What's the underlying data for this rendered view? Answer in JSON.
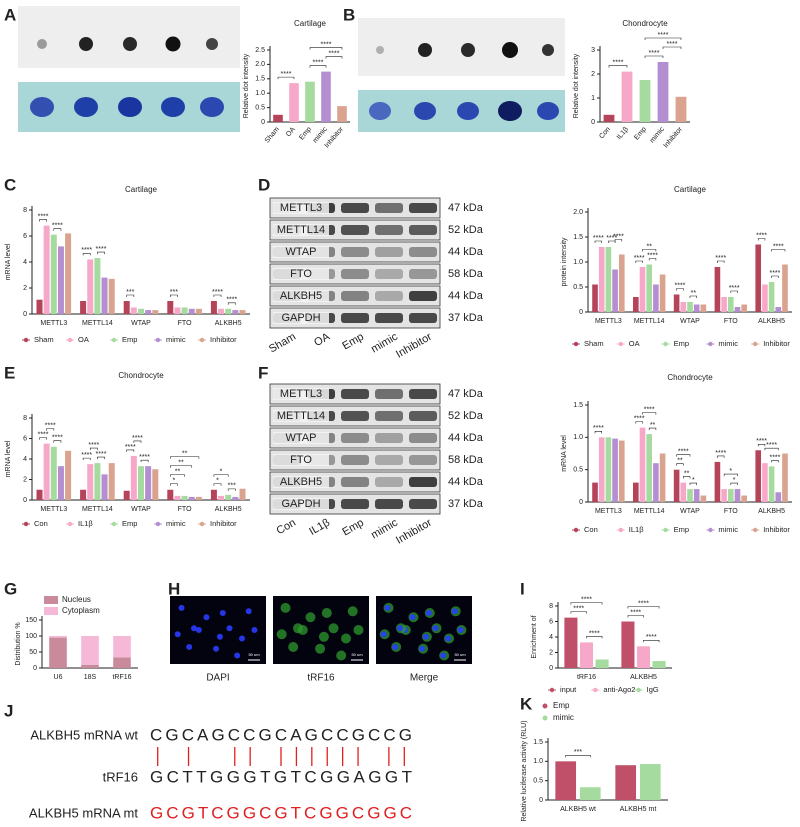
{
  "panels": [
    "A",
    "B",
    "C",
    "D",
    "E",
    "F",
    "G",
    "H",
    "I",
    "J",
    "K"
  ],
  "chart_data": [
    {
      "type": "bar",
      "title": "Cartilage",
      "y_label": "Relative dot intensity",
      "categories": [
        "Sham",
        "OA",
        "Emp",
        "mimic",
        "Inhibitor"
      ],
      "values": [
        0.25,
        1.35,
        1.4,
        1.75,
        0.55
      ],
      "colors": [
        "#b5435a",
        "#f7a8c8",
        "#a6dba0",
        "#b48ed0",
        "#d9a38f"
      ],
      "ylim": [
        0,
        2.5
      ],
      "yticks": [
        0,
        0.5,
        {
          "value": 1,
          "label": "1.0"
        },
        1.5,
        {
          "value": 2,
          "label": "2.0"
        },
        2.5
      ],
      "annotations": [
        "****",
        "****",
        "****",
        "****"
      ]
    },
    {
      "type": "bar",
      "title": "Chondrocyte",
      "y_label": "Relative dot intensity",
      "categories": [
        "Con",
        "IL1β",
        "Emp",
        "mimic",
        "Inhibitor"
      ],
      "values": [
        0.3,
        2.1,
        1.75,
        2.5,
        1.05
      ],
      "colors": [
        "#b5435a",
        "#f7a8c8",
        "#a6dba0",
        "#b48ed0",
        "#d9a38f"
      ],
      "ylim": [
        0,
        3
      ],
      "yticks": [
        0,
        1,
        2,
        3
      ],
      "annotations": [
        "****",
        "****",
        "****",
        "****"
      ]
    },
    {
      "type": "bar",
      "title": "Cartilage",
      "y_label": "mRNA level",
      "categories": [
        "METTL3",
        "METTL14",
        "WTAP",
        "FTO",
        "ALKBH5"
      ],
      "series": [
        {
          "name": "Sham",
          "color": "#b5435a",
          "values": [
            1.1,
            1.0,
            1.0,
            1.0,
            1.0
          ]
        },
        {
          "name": "OA",
          "color": "#f7a8c8",
          "values": [
            6.8,
            4.2,
            0.5,
            0.5,
            0.4
          ]
        },
        {
          "name": "Emp",
          "color": "#a6dba0",
          "values": [
            6.1,
            4.3,
            0.4,
            0.5,
            0.4
          ]
        },
        {
          "name": "mimic",
          "color": "#b48ed0",
          "values": [
            5.2,
            2.8,
            0.3,
            0.4,
            0.3
          ]
        },
        {
          "name": "Inhibitor",
          "color": "#d9a38f",
          "values": [
            6.2,
            2.7,
            0.3,
            0.4,
            0.3
          ]
        }
      ],
      "ylim": [
        0,
        8
      ],
      "yticks": [
        0,
        2,
        4,
        6,
        8
      ],
      "annotations": [
        "****",
        "****",
        "****",
        "****",
        "***",
        "***",
        "****",
        "****"
      ]
    },
    {
      "type": "bar",
      "title": "Cartilage",
      "y_label": "protein intensity",
      "categories": [
        "METTL3",
        "METTL14",
        "WTAP",
        "FTO",
        "ALKBH5"
      ],
      "series": [
        {
          "name": "Sham",
          "color": "#b5435a",
          "values": [
            0.55,
            0.3,
            0.35,
            0.9,
            1.35
          ]
        },
        {
          "name": "OA",
          "color": "#f7a8c8",
          "values": [
            1.3,
            0.9,
            0.2,
            0.3,
            0.55
          ]
        },
        {
          "name": "Emp",
          "color": "#a6dba0",
          "values": [
            1.3,
            0.95,
            0.2,
            0.3,
            0.6
          ]
        },
        {
          "name": "mimic",
          "color": "#b48ed0",
          "values": [
            0.85,
            0.55,
            0.15,
            0.1,
            0.1
          ]
        },
        {
          "name": "Inhibitor",
          "color": "#d9a38f",
          "values": [
            1.15,
            0.75,
            0.15,
            0.15,
            0.95
          ]
        }
      ],
      "ylim": [
        0,
        2
      ],
      "yticks": [
        0,
        0.5,
        {
          "value": 1,
          "label": "1.0"
        },
        1.5,
        {
          "value": 2,
          "label": "2.0"
        }
      ],
      "annotations": [
        "****",
        "****",
        "****",
        "****",
        "****",
        "**",
        "****",
        "**",
        "****",
        "****",
        "****",
        "****",
        "****"
      ]
    },
    {
      "type": "bar",
      "title": "Chondrocyte",
      "y_label": "mRNA level",
      "categories": [
        "METTL3",
        "METTL14",
        "WTAP",
        "FTO",
        "ALKBH5"
      ],
      "series": [
        {
          "name": "Con",
          "color": "#b5435a",
          "values": [
            1.0,
            1.0,
            0.9,
            1.0,
            1.0
          ]
        },
        {
          "name": "IL1β",
          "color": "#f7a8c8",
          "values": [
            5.5,
            3.5,
            4.3,
            0.4,
            0.4
          ]
        },
        {
          "name": "Emp",
          "color": "#a6dba0",
          "values": [
            5.2,
            3.6,
            3.3,
            0.4,
            0.5
          ]
        },
        {
          "name": "mimic",
          "color": "#b48ed0",
          "values": [
            3.3,
            2.5,
            3.3,
            0.3,
            0.3
          ]
        },
        {
          "name": "Inhibitor",
          "color": "#d9a38f",
          "values": [
            4.8,
            3.6,
            3.0,
            0.3,
            1.1
          ]
        }
      ],
      "ylim": [
        0,
        8
      ],
      "yticks": [
        0,
        2,
        4,
        6,
        8
      ],
      "annotations": [
        "****",
        "****",
        "****",
        "****",
        "****",
        "****",
        "****",
        "****",
        "****",
        "*",
        "**",
        "**",
        "**",
        "*",
        "***",
        "*"
      ]
    },
    {
      "type": "bar",
      "title": "Chondrocyte",
      "y_label": "mRNA level",
      "categories": [
        "METTL3",
        "METTL14",
        "WTAP",
        "FTO",
        "ALKBH5"
      ],
      "series": [
        {
          "name": "Con",
          "color": "#b5435a",
          "values": [
            0.3,
            0.3,
            0.5,
            0.62,
            0.8
          ]
        },
        {
          "name": "IL1β",
          "color": "#f7a8c8",
          "values": [
            1.0,
            1.15,
            0.3,
            0.2,
            0.6
          ]
        },
        {
          "name": "Emp",
          "color": "#a6dba0",
          "values": [
            1.0,
            1.05,
            0.2,
            0.2,
            0.55
          ]
        },
        {
          "name": "mimic",
          "color": "#b48ed0",
          "values": [
            0.98,
            0.6,
            0.2,
            0.2,
            0.15
          ]
        },
        {
          "name": "Inhibitor",
          "color": "#d9a38f",
          "values": [
            0.95,
            0.75,
            0.1,
            0.1,
            0.75
          ]
        }
      ],
      "ylim": [
        0,
        1.5
      ],
      "yticks": [
        0,
        0.5,
        {
          "value": 1,
          "label": "1.0"
        },
        1.5
      ],
      "annotations": [
        "****",
        "****",
        "**",
        "****",
        "**",
        "**",
        "*",
        "****",
        "****",
        "*",
        "*",
        "****",
        "****",
        "****"
      ]
    },
    {
      "type": "stacked_bar",
      "y_label": "Distribution %",
      "categories": [
        "U6",
        "18S",
        "tRF16"
      ],
      "series": [
        {
          "name": "Nucleus",
          "color": "#c98a9b",
          "values": [
            95,
            10,
            33
          ]
        },
        {
          "name": "Cytoplasm",
          "color": "#f5b8d6",
          "values": [
            5,
            90,
            67
          ]
        }
      ],
      "ylim": [
        0,
        150
      ],
      "yticks": [
        0,
        50,
        100,
        150
      ]
    },
    {
      "type": "bar",
      "y_label": "Enrichment of",
      "categories": [
        "tRF16",
        "ALKBH5"
      ],
      "series": [
        {
          "name": "input",
          "color": "#c0506a",
          "values": [
            6.5,
            6.0
          ]
        },
        {
          "name": "anti-Ago2",
          "color": "#f7a8c8",
          "values": [
            3.3,
            2.8
          ]
        },
        {
          "name": "IgG",
          "color": "#a6dba0",
          "values": [
            1.1,
            0.9
          ]
        }
      ],
      "ylim": [
        0,
        8
      ],
      "yticks": [
        0,
        2,
        4,
        6,
        8
      ],
      "annotations": [
        "****",
        "****",
        "****",
        "****",
        "****",
        "****"
      ]
    },
    {
      "type": "bar",
      "y_label": "Relative luciferase activity (RLU)",
      "categories": [
        "ALKBH5 wt",
        "ALKBH5 mt"
      ],
      "series": [
        {
          "name": "Emp",
          "color": "#c0506a",
          "values": [
            1.0,
            0.9
          ]
        },
        {
          "name": "mimic",
          "color": "#a6dba0",
          "values": [
            0.33,
            0.93
          ]
        }
      ],
      "ylim": [
        0,
        1.5
      ],
      "yticks": [
        0,
        0.5,
        {
          "value": 1,
          "label": "1.0"
        },
        1.5
      ],
      "annotations": [
        "***"
      ]
    }
  ],
  "blots": [
    {
      "rows": [
        "METTL3",
        "METTL14",
        "WTAP",
        "FTO",
        "ALKBH5",
        "GAPDH"
      ],
      "kda": [
        "47 kDa",
        "52 kDa",
        "44 kDa",
        "58 kDa",
        "44 kDa",
        "37 kDa"
      ],
      "lanes": [
        "Sham",
        "OA",
        "Emp",
        "mimic",
        "Inhibitor"
      ]
    },
    {
      "rows": [
        "METTL3",
        "METTL14",
        "WTAP",
        "FTO",
        "ALKBH5",
        "GAPDH"
      ],
      "kda": [
        "47 kDa",
        "52 kDa",
        "44 kDa",
        "58 kDa",
        "44 kDa",
        "37 kDa"
      ],
      "lanes": [
        "Con",
        "IL1β",
        "Emp",
        "mimic",
        "Inhibitor"
      ]
    }
  ],
  "microscopy": {
    "labels": [
      "DAPI",
      "tRF16",
      "Merge"
    ],
    "scale": "50 um"
  },
  "sequences": {
    "labels": [
      "ALKBH5 mRNA wt",
      "tRF16",
      "ALKBH5 mRNA mt"
    ],
    "rows": [
      "CGCAGCCGCAGCCGCCG",
      "GCTTGGGTGTCGGAGGT",
      "GCGTCGGCGTCGGCGGC"
    ]
  }
}
